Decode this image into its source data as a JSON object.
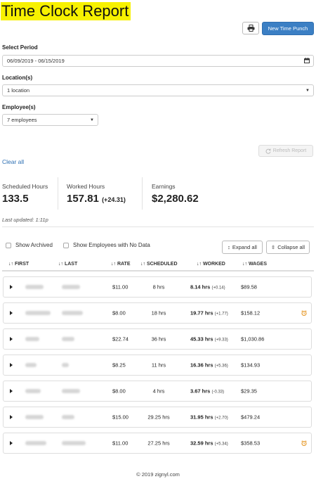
{
  "page": {
    "title": "Time Clock Report"
  },
  "header": {
    "print_icon": "printer-icon",
    "new_punch_label": "New Time Punch"
  },
  "filters": {
    "period_label": "Select Period",
    "period_value": "06/09/2019 - 06/15/2019",
    "locations_label": "Location(s)",
    "locations_value": "1 location",
    "employees_label": "Employee(s)",
    "employees_value": "7 employees",
    "refresh_label": "Refresh Report",
    "clear_label": "Clear all"
  },
  "stats": {
    "scheduled_label": "Scheduled Hours",
    "scheduled_value": "133.5",
    "worked_label": "Worked Hours",
    "worked_value": "157.81",
    "worked_delta": "(+24.31)",
    "earnings_label": "Earnings",
    "earnings_value": "$2,280.62",
    "last_updated": "Last updated: 1:11p"
  },
  "options": {
    "show_archived": "Show Archived",
    "show_no_data": "Show Employees with No Data",
    "expand_all": "Expand all",
    "collapse_all": "Collapse all"
  },
  "table": {
    "columns": {
      "first": "FIRST",
      "last": "LAST",
      "rate": "RATE",
      "scheduled": "SCHEDULED",
      "worked": "WORKED",
      "wages": "WAGES"
    },
    "rows": [
      {
        "rate": "$11.00",
        "scheduled": "8 hrs",
        "worked": "8.14 hrs",
        "delta": "(+0.14)",
        "wages": "$89.58",
        "alert": false
      },
      {
        "rate": "$8.00",
        "scheduled": "18 hrs",
        "worked": "19.77 hrs",
        "delta": "(+1.77)",
        "wages": "$158.12",
        "alert": true
      },
      {
        "rate": "$22.74",
        "scheduled": "36 hrs",
        "worked": "45.33 hrs",
        "delta": "(+9.33)",
        "wages": "$1,030.86",
        "alert": false
      },
      {
        "rate": "$8.25",
        "scheduled": "11 hrs",
        "worked": "16.36 hrs",
        "delta": "(+5.36)",
        "wages": "$134.93",
        "alert": false
      },
      {
        "rate": "$8.00",
        "scheduled": "4 hrs",
        "worked": "3.67 hrs",
        "delta": "(-0.33)",
        "wages": "$29.35",
        "alert": false
      },
      {
        "rate": "$15.00",
        "scheduled": "29.25 hrs",
        "worked": "31.95 hrs",
        "delta": "(+2.70)",
        "wages": "$479.24",
        "alert": false
      },
      {
        "rate": "$11.00",
        "scheduled": "27.25 hrs",
        "worked": "32.59 hrs",
        "delta": "(+5.34)",
        "wages": "$358.53",
        "alert": true
      }
    ]
  },
  "footer": {
    "copyright": "© 2019 zignyl.com"
  },
  "colors": {
    "accent": "#3b7fc4",
    "highlight": "#f7f100",
    "alert": "#e8a13a"
  }
}
